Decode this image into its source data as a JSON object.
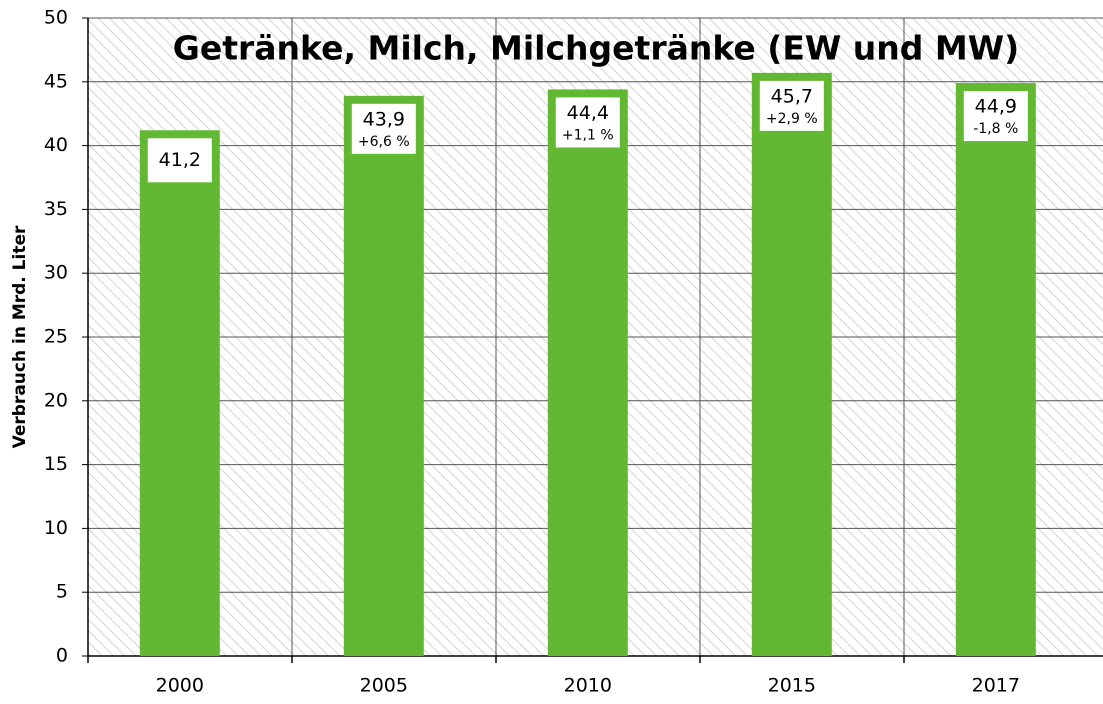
{
  "chart_data": {
    "type": "bar",
    "title": "Getränke, Milch, Milchgetränke (EW und MW)",
    "y_label": "Verbrauch in Mrd. Liter",
    "categories": [
      "2000",
      "2005",
      "2010",
      "2015",
      "2017"
    ],
    "values": [
      41.2,
      43.9,
      44.4,
      45.7,
      44.9
    ],
    "value_labels": [
      "41,2",
      "43,9",
      "44,4",
      "45,7",
      "44,9"
    ],
    "change_labels": [
      null,
      "+6,6 %",
      "+1,1 %",
      "+2,9 %",
      "-1,8 %"
    ],
    "color": "#62b832",
    "ylim": [
      0,
      50
    ],
    "yticks": [
      0,
      5,
      10,
      15,
      20,
      25,
      30,
      35,
      40,
      45,
      50
    ],
    "grid": true
  }
}
